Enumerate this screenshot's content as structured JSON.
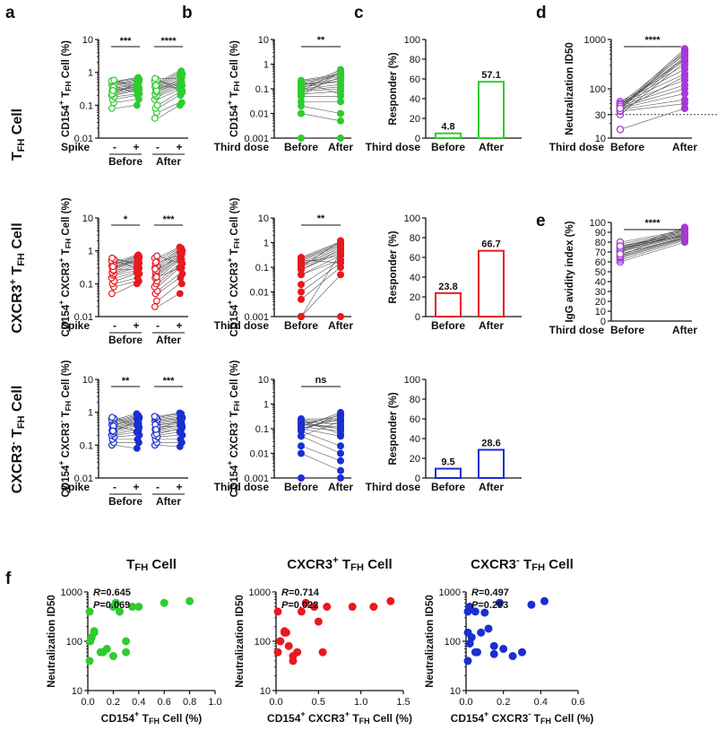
{
  "panel_letters": [
    "a",
    "b",
    "c",
    "d",
    "e",
    "f"
  ],
  "row_labels": [
    "T_FH Cell",
    "CXCR3+ T_FH Cell",
    "CXCR3- T_FH Cell"
  ],
  "colors": {
    "green": "#2ecc2e",
    "red": "#e8191f",
    "blue": "#1a2fd0",
    "purple": "#a43bd6",
    "line": "#555555",
    "axis": "#111111"
  },
  "chart_data": [
    {
      "id": "a1",
      "type": "scatter",
      "series_type": "paired-before-after",
      "color": "green",
      "ylabel": "CD154+ T_FH Cell (%)",
      "yscale": "log",
      "ylim": [
        0.01,
        10
      ],
      "yticks": [
        "0.01",
        "0.1",
        "1",
        "10"
      ],
      "groups": [
        "Before",
        "After"
      ],
      "spike_labels": [
        "-",
        "+"
      ],
      "row_label": "Spike",
      "significance": [
        "***",
        "****"
      ],
      "before_minus": [
        0.08,
        0.12,
        0.15,
        0.18,
        0.2,
        0.22,
        0.25,
        0.27,
        0.3,
        0.33,
        0.36,
        0.4,
        0.42,
        0.45,
        0.5,
        0.52,
        0.55,
        0.58,
        0.22,
        0.35,
        0.28
      ],
      "before_plus": [
        0.1,
        0.15,
        0.2,
        0.22,
        0.28,
        0.3,
        0.32,
        0.35,
        0.38,
        0.42,
        0.45,
        0.5,
        0.55,
        0.6,
        0.65,
        0.7,
        0.4,
        0.3,
        0.48,
        0.25,
        0.36
      ],
      "after_minus": [
        0.04,
        0.06,
        0.08,
        0.1,
        0.15,
        0.18,
        0.2,
        0.22,
        0.25,
        0.3,
        0.32,
        0.35,
        0.38,
        0.42,
        0.45,
        0.5,
        0.55,
        0.6,
        0.65,
        0.28,
        0.4
      ],
      "after_plus": [
        0.1,
        0.12,
        0.2,
        0.25,
        0.3,
        0.35,
        0.4,
        0.45,
        0.5,
        0.55,
        0.6,
        0.7,
        0.8,
        0.9,
        1.0,
        1.1,
        0.38,
        0.28,
        0.65,
        0.48,
        0.33
      ]
    },
    {
      "id": "a2",
      "type": "scatter",
      "series_type": "paired-before-after",
      "color": "red",
      "ylabel": "CD154+ CXCR3+ T_FH Cell (%)",
      "yscale": "log",
      "ylim": [
        0.01,
        10
      ],
      "yticks": [
        "0.01",
        "0.1",
        "1",
        "10"
      ],
      "groups": [
        "Before",
        "After"
      ],
      "spike_labels": [
        "-",
        "+"
      ],
      "row_label": "Spike",
      "significance": [
        "*",
        "***"
      ],
      "before_minus": [
        0.05,
        0.08,
        0.1,
        0.12,
        0.15,
        0.18,
        0.2,
        0.22,
        0.25,
        0.28,
        0.3,
        0.32,
        0.35,
        0.38,
        0.4,
        0.45,
        0.5,
        0.55,
        0.6,
        0.26,
        0.33
      ],
      "before_plus": [
        0.1,
        0.12,
        0.15,
        0.2,
        0.22,
        0.25,
        0.3,
        0.35,
        0.4,
        0.45,
        0.5,
        0.55,
        0.6,
        0.65,
        0.7,
        0.75,
        0.3,
        0.42,
        0.38,
        0.28,
        0.5
      ],
      "after_minus": [
        0.02,
        0.03,
        0.05,
        0.06,
        0.08,
        0.1,
        0.12,
        0.15,
        0.18,
        0.2,
        0.22,
        0.25,
        0.3,
        0.35,
        0.4,
        0.5,
        0.6,
        0.7,
        0.28,
        0.16,
        0.45
      ],
      "after_plus": [
        0.05,
        0.1,
        0.15,
        0.2,
        0.3,
        0.35,
        0.4,
        0.5,
        0.55,
        0.6,
        0.7,
        0.8,
        0.9,
        1.0,
        1.1,
        1.2,
        1.3,
        0.42,
        0.65,
        0.3,
        0.75
      ]
    },
    {
      "id": "a3",
      "type": "scatter",
      "series_type": "paired-before-after",
      "color": "blue",
      "ylabel": "CD154+ CXCR3- T_FH Cell (%)",
      "yscale": "log",
      "ylim": [
        0.01,
        10
      ],
      "yticks": [
        "0.01",
        "0.1",
        "1",
        "10"
      ],
      "groups": [
        "Before",
        "After"
      ],
      "spike_labels": [
        "-",
        "+"
      ],
      "row_label": "Spike",
      "significance": [
        "**",
        "***"
      ],
      "before_minus": [
        0.1,
        0.12,
        0.15,
        0.18,
        0.2,
        0.22,
        0.25,
        0.28,
        0.3,
        0.33,
        0.36,
        0.4,
        0.42,
        0.45,
        0.5,
        0.55,
        0.6,
        0.65,
        0.7,
        0.38,
        0.27
      ],
      "before_plus": [
        0.08,
        0.12,
        0.15,
        0.2,
        0.25,
        0.3,
        0.35,
        0.4,
        0.45,
        0.5,
        0.55,
        0.6,
        0.65,
        0.7,
        0.75,
        0.8,
        0.9,
        0.35,
        0.42,
        0.28,
        0.52
      ],
      "after_minus": [
        0.1,
        0.12,
        0.15,
        0.18,
        0.2,
        0.25,
        0.28,
        0.3,
        0.35,
        0.4,
        0.45,
        0.5,
        0.55,
        0.6,
        0.65,
        0.7,
        0.75,
        0.36,
        0.42,
        0.22,
        0.3
      ],
      "after_plus": [
        0.09,
        0.12,
        0.15,
        0.2,
        0.25,
        0.3,
        0.35,
        0.4,
        0.45,
        0.5,
        0.55,
        0.6,
        0.65,
        0.7,
        0.8,
        0.9,
        0.95,
        0.38,
        0.48,
        0.32,
        0.58
      ]
    },
    {
      "id": "b1",
      "type": "scatter",
      "series_type": "paired-before-after",
      "color": "green",
      "ylabel": "CD154+ T_FH Cell (%)",
      "yscale": "log",
      "ylim": [
        0.001,
        10
      ],
      "yticks": [
        "0.001",
        "0.01",
        "0.1",
        "1",
        "10"
      ],
      "xlabel": "Third dose",
      "groups": [
        "Before",
        "After"
      ],
      "significance": "**",
      "before": [
        0.001,
        0.01,
        0.02,
        0.03,
        0.05,
        0.06,
        0.08,
        0.1,
        0.12,
        0.15,
        0.18,
        0.2,
        0.22,
        0.1,
        0.05,
        0.08,
        0.12,
        0.15,
        0.07,
        0.09,
        0.2
      ],
      "after": [
        0.001,
        0.005,
        0.01,
        0.03,
        0.05,
        0.08,
        0.1,
        0.15,
        0.2,
        0.25,
        0.3,
        0.35,
        0.4,
        0.45,
        0.5,
        0.55,
        0.6,
        0.2,
        0.3,
        0.12,
        0.06
      ]
    },
    {
      "id": "b2",
      "type": "scatter",
      "series_type": "paired-before-after",
      "color": "red",
      "ylabel": "CD154+ CXCR3+ T_FH Cell (%)",
      "yscale": "log",
      "ylim": [
        0.001,
        10
      ],
      "yticks": [
        "0.001",
        "0.01",
        "0.1",
        "1",
        "10"
      ],
      "xlabel": "Third dose",
      "groups": [
        "Before",
        "After"
      ],
      "significance": "**",
      "before": [
        0.001,
        0.001,
        0.005,
        0.01,
        0.02,
        0.05,
        0.08,
        0.1,
        0.12,
        0.15,
        0.18,
        0.2,
        0.22,
        0.25,
        0.1,
        0.15,
        0.05,
        0.08,
        0.12,
        0.2,
        0.001
      ],
      "after": [
        0.001,
        0.05,
        0.1,
        0.15,
        0.2,
        0.3,
        0.4,
        0.5,
        0.6,
        0.7,
        0.8,
        0.9,
        1.0,
        1.1,
        1.2,
        0.3,
        0.2,
        0.5,
        0.6,
        0.15,
        0.4
      ]
    },
    {
      "id": "b3",
      "type": "scatter",
      "series_type": "paired-before-after",
      "color": "blue",
      "ylabel": "CD154+ CXCR3- T_FH Cell (%)",
      "yscale": "log",
      "ylim": [
        0.001,
        10
      ],
      "yticks": [
        "0.001",
        "0.01",
        "0.1",
        "1",
        "10"
      ],
      "xlabel": "Third dose",
      "groups": [
        "Before",
        "After"
      ],
      "significance": "ns",
      "before": [
        0.001,
        0.01,
        0.02,
        0.05,
        0.08,
        0.1,
        0.12,
        0.15,
        0.2,
        0.22,
        0.25,
        0.1,
        0.15,
        0.08,
        0.12,
        0.18,
        0.2,
        0.05,
        0.1,
        0.22,
        0.15
      ],
      "after": [
        0.001,
        0.002,
        0.005,
        0.01,
        0.02,
        0.05,
        0.08,
        0.1,
        0.15,
        0.2,
        0.25,
        0.3,
        0.35,
        0.4,
        0.45,
        0.1,
        0.15,
        0.2,
        0.25,
        0.06,
        0.12
      ]
    },
    {
      "id": "c1",
      "type": "bar",
      "color": "green",
      "ylabel": "Responder (%)",
      "ylim": [
        0,
        100
      ],
      "yticks": [
        "0",
        "20",
        "40",
        "60",
        "80",
        "100"
      ],
      "xlabel": "Third dose",
      "categories": [
        "Before",
        "After"
      ],
      "values": [
        4.8,
        57.1
      ],
      "value_labels": [
        "4.8",
        "57.1"
      ]
    },
    {
      "id": "c2",
      "type": "bar",
      "color": "red",
      "ylabel": "Responder (%)",
      "ylim": [
        0,
        100
      ],
      "yticks": [
        "0",
        "20",
        "40",
        "60",
        "80",
        "100"
      ],
      "categories": [
        "Before",
        "After"
      ],
      "values": [
        23.8,
        66.7
      ],
      "value_labels": [
        "23.8",
        "66.7"
      ]
    },
    {
      "id": "c3",
      "type": "bar",
      "color": "blue",
      "ylabel": "Responder (%)",
      "ylim": [
        0,
        100
      ],
      "yticks": [
        "0",
        "20",
        "40",
        "60",
        "80",
        "100"
      ],
      "xlabel": "Third dose",
      "categories": [
        "Before",
        "After"
      ],
      "values": [
        9.5,
        28.6
      ],
      "value_labels": [
        "9.5",
        "28.6"
      ]
    },
    {
      "id": "d",
      "type": "scatter",
      "series_type": "paired-before-after",
      "color": "purple",
      "ylabel": "Neutralization ID50",
      "yscale": "log",
      "ylim": [
        10,
        1000
      ],
      "yticks": [
        "10",
        "30",
        "100",
        "1000"
      ],
      "threshold": 30,
      "xlabel": "Third dose",
      "groups": [
        "Before",
        "After"
      ],
      "significance": "****",
      "before": [
        15,
        35,
        38,
        40,
        42,
        45,
        48,
        50,
        52,
        55,
        30,
        35,
        40,
        45,
        50,
        38,
        42,
        48,
        44,
        36,
        40
      ],
      "after": [
        40,
        50,
        60,
        80,
        100,
        120,
        150,
        200,
        250,
        300,
        350,
        400,
        450,
        500,
        550,
        600,
        650,
        380,
        420,
        180,
        520
      ]
    },
    {
      "id": "e",
      "type": "scatter",
      "series_type": "paired-before-after",
      "color": "purple",
      "ylabel": "IgG avidity index (%)",
      "ylim": [
        0,
        100
      ],
      "yticks": [
        "0",
        "10",
        "20",
        "30",
        "40",
        "50",
        "60",
        "70",
        "80",
        "90",
        "100"
      ],
      "xlabel": "Third dose",
      "groups": [
        "Before",
        "After"
      ],
      "significance": "****",
      "before": [
        60,
        62,
        64,
        65,
        66,
        68,
        70,
        71,
        72,
        73,
        74,
        75,
        76,
        78,
        80,
        66,
        70,
        72,
        74,
        68,
        76
      ],
      "after": [
        80,
        82,
        83,
        84,
        85,
        85,
        86,
        87,
        88,
        88,
        89,
        90,
        90,
        91,
        92,
        93,
        94,
        95,
        86,
        84,
        87
      ]
    },
    {
      "id": "f1",
      "type": "scatter",
      "color": "green",
      "title": "T_FH Cell",
      "xlabel": "CD154+ T_FH Cell (%)",
      "ylabel": "Neutralization ID50",
      "xlim": [
        0,
        1.0
      ],
      "xticks": [
        "0.0",
        "0.2",
        "0.4",
        "0.6",
        "0.8",
        "1.0"
      ],
      "yscale": "log",
      "ylim": [
        10,
        1000
      ],
      "yticks": [
        "10",
        "100",
        "1000"
      ],
      "stats": {
        "R": "0.645",
        "P": "0.069"
      },
      "x": [
        0.0,
        0.0,
        0.02,
        0.03,
        0.05,
        0.1,
        0.15,
        0.2,
        0.22,
        0.25,
        0.3,
        0.35,
        0.4,
        0.6,
        0.8,
        0.2,
        0.05,
        0.12,
        0.3,
        0.25
      ],
      "y": [
        400,
        40,
        100,
        120,
        150,
        60,
        70,
        500,
        600,
        400,
        60,
        500,
        500,
        600,
        650,
        50,
        160,
        60,
        100,
        400
      ]
    },
    {
      "id": "f2",
      "type": "scatter",
      "color": "red",
      "title": "CXCR3+ T_FH Cell",
      "xlabel": "CD154+ CXCR3+ T_FH Cell (%)",
      "ylabel": "Neutralization ID50",
      "xlim": [
        0,
        1.5
      ],
      "xticks": [
        "0.0",
        "0.5",
        "1.0",
        "1.5"
      ],
      "yscale": "log",
      "ylim": [
        10,
        1000
      ],
      "yticks": [
        "10",
        "100",
        "1000"
      ],
      "stats": {
        "R": "0.714",
        "P": "0.022"
      },
      "x": [
        0.0,
        0.02,
        0.05,
        0.1,
        0.12,
        0.15,
        0.2,
        0.25,
        0.3,
        0.35,
        0.45,
        0.55,
        0.6,
        0.9,
        1.15,
        1.35,
        0.1,
        0.2,
        0.05,
        0.5
      ],
      "y": [
        400,
        60,
        100,
        160,
        150,
        80,
        50,
        60,
        400,
        600,
        500,
        60,
        500,
        500,
        500,
        650,
        150,
        40,
        100,
        250
      ]
    },
    {
      "id": "f3",
      "type": "scatter",
      "color": "blue",
      "title": "CXCR3- T_FH Cell",
      "xlabel": "CD154+ CXCR3- T_FH Cell (%)",
      "ylabel": "Neutralization ID50",
      "xlim": [
        0,
        0.6
      ],
      "xticks": [
        "0.0",
        "0.2",
        "0.4",
        "0.6"
      ],
      "yscale": "log",
      "ylim": [
        10,
        1000
      ],
      "yticks": [
        "10",
        "100",
        "1000"
      ],
      "stats": {
        "R": "0.497",
        "P": "0.293"
      },
      "x": [
        0.0,
        0.0,
        0.01,
        0.02,
        0.03,
        0.05,
        0.06,
        0.08,
        0.1,
        0.12,
        0.15,
        0.18,
        0.2,
        0.25,
        0.3,
        0.35,
        0.42,
        0.02,
        0.05,
        0.15
      ],
      "y": [
        400,
        40,
        150,
        90,
        120,
        400,
        60,
        150,
        380,
        180,
        80,
        600,
        70,
        50,
        60,
        550,
        650,
        500,
        60,
        55
      ]
    }
  ]
}
